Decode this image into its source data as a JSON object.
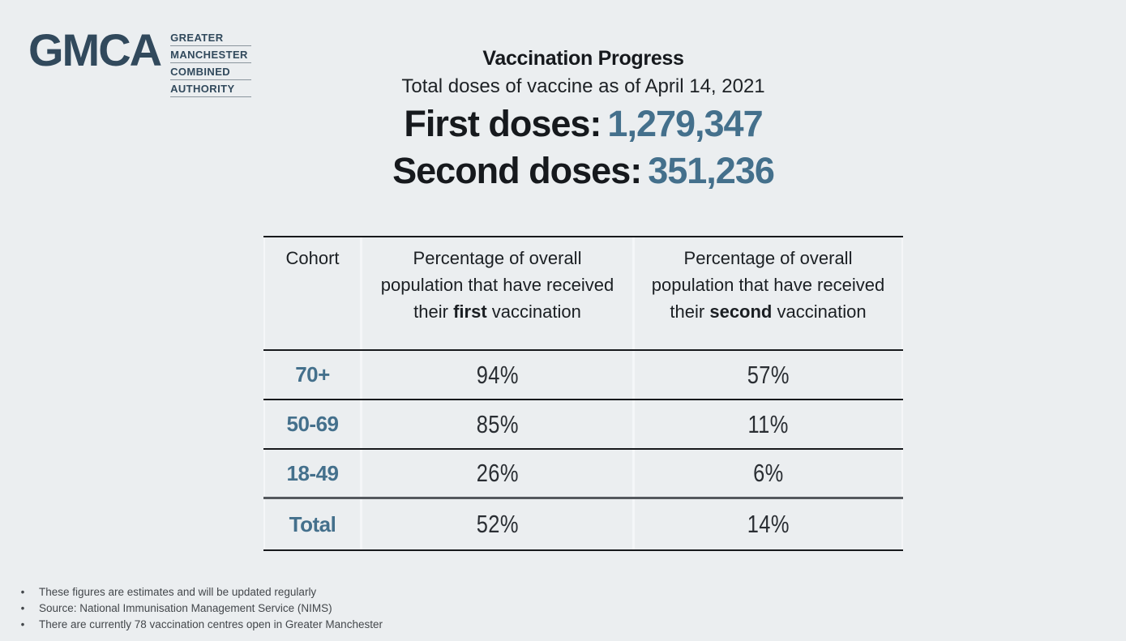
{
  "logo": {
    "acronym": "GMCA",
    "words": [
      "GREATER",
      "MANCHESTER",
      "COMBINED",
      "AUTHORITY"
    ],
    "color": "#31495c"
  },
  "header": {
    "title": "Vaccination Progress",
    "subtitle": "Total doses of vaccine as of April 14, 2021",
    "first_doses_label": "First doses:",
    "first_doses_value": "1,279,347",
    "second_doses_label": "Second doses:",
    "second_doses_value": "351,236",
    "accent_color": "#44708c"
  },
  "table": {
    "header": {
      "cohort": "Cohort",
      "first": {
        "prefix": "Percentage of overall population that have received their ",
        "bold": "first",
        "suffix": " vaccination"
      },
      "second": {
        "prefix": "Percentage of overall population that have received their ",
        "bold": "second",
        "suffix": " vaccination"
      }
    },
    "rows": [
      {
        "cohort": "70+",
        "first": "94%",
        "second": "57%"
      },
      {
        "cohort": "50-69",
        "first": "85%",
        "second": "11%"
      },
      {
        "cohort": "18-49",
        "first": "26%",
        "second": "6%"
      },
      {
        "cohort": "Total",
        "first": "52%",
        "second": "14%"
      }
    ]
  },
  "footnotes": [
    "These figures are estimates and will be updated regularly",
    "Source: National Immunisation Management Service (NIMS)",
    "There are currently 78 vaccination centres open in Greater Manchester"
  ],
  "colors": {
    "background": "#ebeef0",
    "dark_text": "#16191d",
    "accent_slate": "#44708c",
    "logo_slate": "#31495c"
  }
}
